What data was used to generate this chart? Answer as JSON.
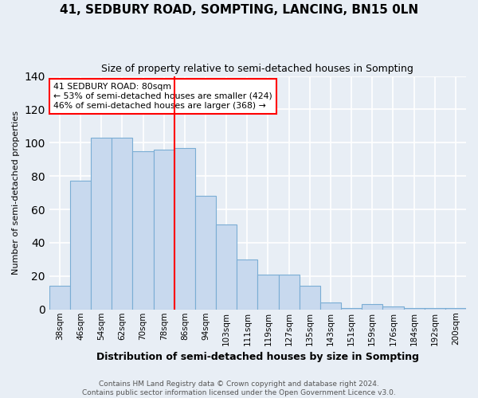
{
  "title": "41, SEDBURY ROAD, SOMPTING, LANCING, BN15 0LN",
  "subtitle": "Size of property relative to semi-detached houses in Sompting",
  "xlabel": "Distribution of semi-detached houses by size in Sompting",
  "ylabel": "Number of semi-detached properties",
  "categories": [
    "38sqm",
    "46sqm",
    "54sqm",
    "62sqm",
    "70sqm",
    "78sqm",
    "86sqm",
    "94sqm",
    "103sqm",
    "111sqm",
    "119sqm",
    "127sqm",
    "135sqm",
    "143sqm",
    "151sqm",
    "159sqm",
    "176sqm",
    "184sqm",
    "192sqm",
    "200sqm"
  ],
  "values": [
    14,
    77,
    103,
    103,
    95,
    96,
    97,
    68,
    51,
    30,
    21,
    21,
    14,
    4,
    1,
    3,
    2,
    1,
    1,
    1
  ],
  "bar_color": "#c8d9ee",
  "bar_edge_color": "#7aadd4",
  "vline_bin_index": 6,
  "annotation_title": "41 SEDBURY ROAD: 80sqm",
  "annotation_line1": "← 53% of semi-detached houses are smaller (424)",
  "annotation_line2": "46% of semi-detached houses are larger (368) →",
  "ylim": [
    0,
    140
  ],
  "yticks": [
    0,
    20,
    40,
    60,
    80,
    100,
    120,
    140
  ],
  "footer_line1": "Contains HM Land Registry data © Crown copyright and database right 2024.",
  "footer_line2": "Contains public sector information licensed under the Open Government Licence v3.0.",
  "bg_color": "#e8eef5",
  "grid_color": "#ffffff"
}
